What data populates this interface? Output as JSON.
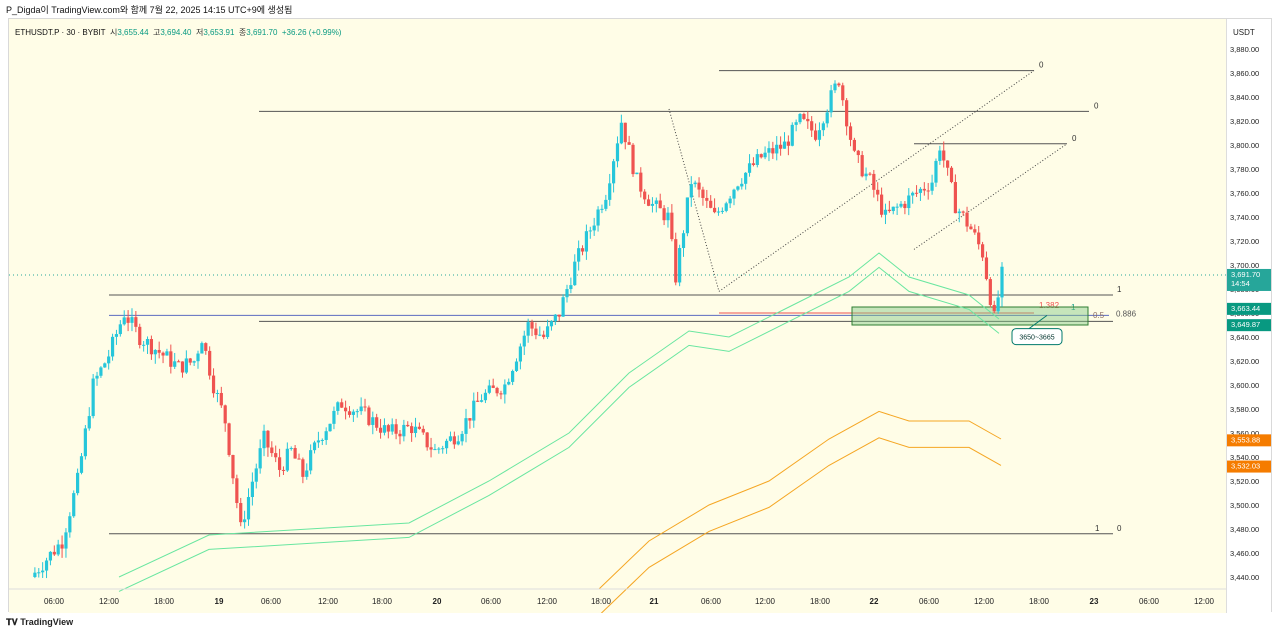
{
  "header": {
    "text": "P_Digda이 TradingView.com와 함께 7월 22, 2025 14:15 UTC+9에 생성됨"
  },
  "footer": {
    "brand": "TradingView"
  },
  "info": {
    "symbol": "ETHUSDT.P · 30 · BYBIT",
    "o_label": "시",
    "o": "3,655.44",
    "h_label": "고",
    "h": "3,694.40",
    "l_label": "저",
    "l": "3,653.91",
    "c_label": "종",
    "c": "3,691.70",
    "change": "+36.26 (+0.99%)"
  },
  "colors": {
    "up": "#26c6da",
    "down": "#ef5350",
    "band_green": "#69e6a0",
    "band_orange": "#f5a623",
    "bg": "#fffde7"
  },
  "currency": "USDT",
  "chart_data": {
    "type": "candlestick",
    "symbol": "ETHUSDT.P",
    "interval": "30",
    "ylim": [
      3430,
      3905
    ],
    "y_ticks": [
      "3,440.00",
      "3,460.00",
      "3,480.00",
      "3,500.00",
      "3,520.00",
      "3,540.00",
      "3,560.00",
      "3,580.00",
      "3,600.00",
      "3,620.00",
      "3,640.00",
      "3,660.00",
      "3,680.00",
      "3,700.00",
      "3,720.00",
      "3,740.00",
      "3,760.00",
      "3,780.00",
      "3,800.00",
      "3,820.00",
      "3,840.00",
      "3,860.00",
      "3,880.00"
    ],
    "x_ticks": [
      "06:00",
      "12:00",
      "18:00",
      "19",
      "06:00",
      "12:00",
      "18:00",
      "20",
      "06:00",
      "12:00",
      "18:00",
      "21",
      "06:00",
      "12:00",
      "18:00",
      "22",
      "06:00",
      "12:00",
      "18:00",
      "23",
      "06:00",
      "12:00"
    ],
    "price_path": [
      [
        0,
        3440
      ],
      [
        8,
        3470
      ],
      [
        12,
        3520
      ],
      [
        16,
        3600
      ],
      [
        20,
        3625
      ],
      [
        24,
        3660
      ],
      [
        28,
        3640
      ],
      [
        34,
        3625
      ],
      [
        38,
        3615
      ],
      [
        42,
        3620
      ],
      [
        44,
        3640
      ],
      [
        47,
        3600
      ],
      [
        50,
        3570
      ],
      [
        54,
        3480
      ],
      [
        57,
        3520
      ],
      [
        60,
        3555
      ],
      [
        64,
        3530
      ],
      [
        67,
        3545
      ],
      [
        70,
        3525
      ],
      [
        74,
        3555
      ],
      [
        80,
        3585
      ],
      [
        86,
        3575
      ],
      [
        92,
        3560
      ],
      [
        98,
        3565
      ],
      [
        104,
        3545
      ],
      [
        110,
        3560
      ],
      [
        116,
        3590
      ],
      [
        122,
        3600
      ],
      [
        128,
        3650
      ],
      [
        132,
        3640
      ],
      [
        136,
        3660
      ],
      [
        140,
        3700
      ],
      [
        144,
        3730
      ],
      [
        148,
        3760
      ],
      [
        152,
        3820
      ],
      [
        156,
        3770
      ],
      [
        160,
        3750
      ],
      [
        164,
        3740
      ],
      [
        166,
        3690
      ],
      [
        170,
        3770
      ],
      [
        176,
        3740
      ],
      [
        182,
        3770
      ],
      [
        188,
        3790
      ],
      [
        194,
        3800
      ],
      [
        198,
        3820
      ],
      [
        202,
        3810
      ],
      [
        206,
        3840
      ],
      [
        208,
        3855
      ],
      [
        212,
        3790
      ],
      [
        216,
        3770
      ],
      [
        220,
        3740
      ],
      [
        224,
        3750
      ],
      [
        228,
        3760
      ],
      [
        232,
        3770
      ],
      [
        234,
        3800
      ],
      [
        238,
        3750
      ],
      [
        242,
        3730
      ],
      [
        245,
        3710
      ],
      [
        248,
        3655
      ],
      [
        250,
        3691.7
      ]
    ],
    "current_price": "3,691.70",
    "countdown": "14:54",
    "price_labels": [
      {
        "value": "3,663.44",
        "color": "#089981"
      },
      {
        "value": "3,649.87",
        "color": "#089981"
      },
      {
        "value": "3,553.88",
        "color": "#f57c00"
      },
      {
        "value": "3,532.03",
        "color": "#f57c00"
      }
    ],
    "horizontal_levels": [
      {
        "price": 3828,
        "label": "0"
      },
      {
        "price": 3862,
        "label": "0"
      },
      {
        "price": 3801,
        "label": "0"
      },
      {
        "price": 3675,
        "label": "1"
      },
      {
        "price": 3655,
        "label": "0.5"
      },
      {
        "price": 3476,
        "label": "1"
      },
      {
        "price": 3476,
        "label2": "0"
      }
    ],
    "fib_labels": {
      "red": "1.382",
      "green": "1",
      "fib": "0.886"
    },
    "zone": {
      "low": 3650,
      "high": 3665,
      "label": "3650~3665"
    },
    "bands": {
      "green_upper": "3,710 peak",
      "orange_upper": "3,578 peak"
    }
  }
}
